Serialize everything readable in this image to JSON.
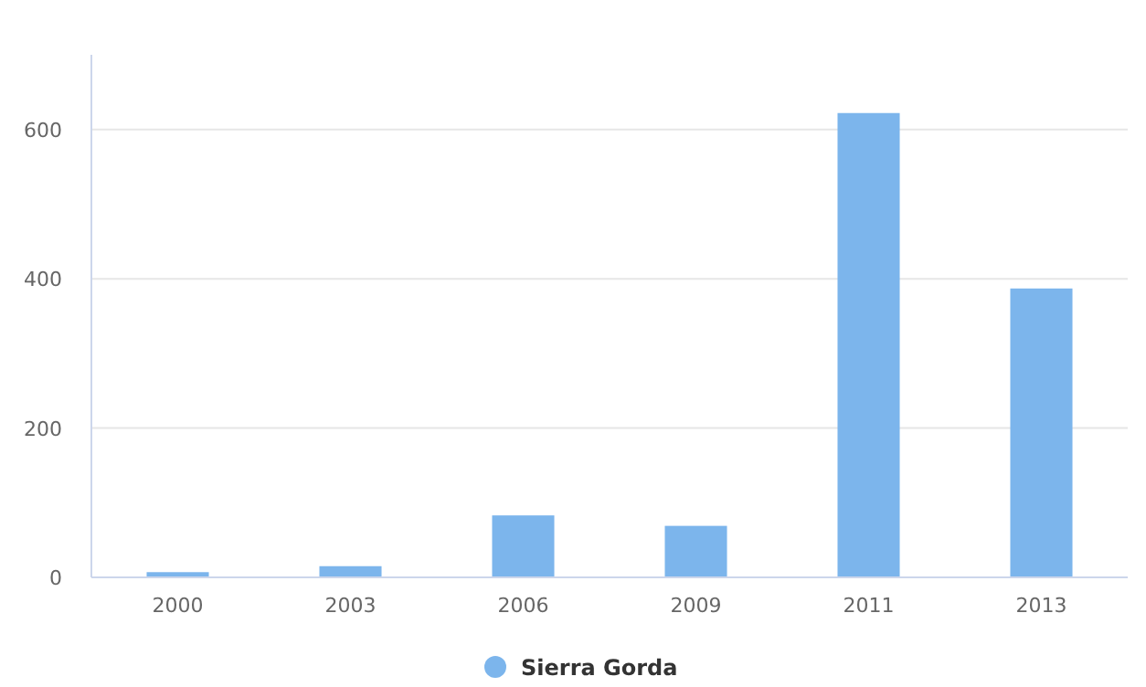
{
  "chart_data": {
    "type": "bar",
    "categories": [
      "2000",
      "2003",
      "2006",
      "2009",
      "2011",
      "2013"
    ],
    "series": [
      {
        "name": "Sierra Gorda",
        "color": "#7cb5ec",
        "values": [
          7,
          15,
          83,
          69,
          622,
          387
        ]
      }
    ],
    "ylim": [
      0,
      700
    ],
    "yticks": [
      0,
      200,
      400,
      600
    ],
    "grid": "y",
    "legend": "bottom"
  }
}
